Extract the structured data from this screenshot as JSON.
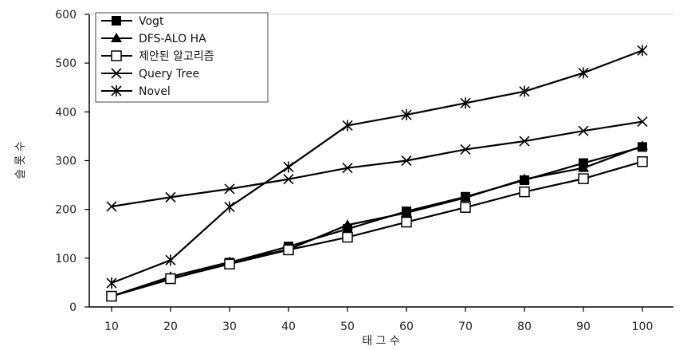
{
  "chart_data": {
    "type": "line",
    "xlabel": "태 그 수",
    "ylabel": "슬 롯 수",
    "x": [
      10,
      20,
      30,
      40,
      50,
      60,
      70,
      80,
      90,
      100
    ],
    "ylim": [
      0,
      600
    ],
    "yticks": [
      0,
      100,
      200,
      300,
      400,
      500,
      600
    ],
    "grid": false,
    "legend_position": "top-left",
    "series": [
      {
        "name": "Vogt",
        "marker": "filled-square",
        "values": [
          22,
          57,
          91,
          124,
          160,
          196,
          226,
          260,
          295,
          328
        ]
      },
      {
        "name": "DFS-ALO HA",
        "marker": "filled-triangle",
        "values": [
          22,
          62,
          92,
          118,
          168,
          193,
          224,
          262,
          285,
          330
        ]
      },
      {
        "name": "제안된 알고리즘",
        "marker": "open-square",
        "values": [
          22,
          58,
          88,
          117,
          143,
          174,
          204,
          236,
          263,
          298
        ]
      },
      {
        "name": "Query Tree",
        "marker": "x",
        "values": [
          206,
          225,
          242,
          262,
          285,
          300,
          323,
          340,
          361,
          380
        ]
      },
      {
        "name": "Novel",
        "marker": "star",
        "values": [
          49,
          96,
          205,
          287,
          372,
          394,
          418,
          442,
          480,
          526
        ]
      }
    ]
  }
}
